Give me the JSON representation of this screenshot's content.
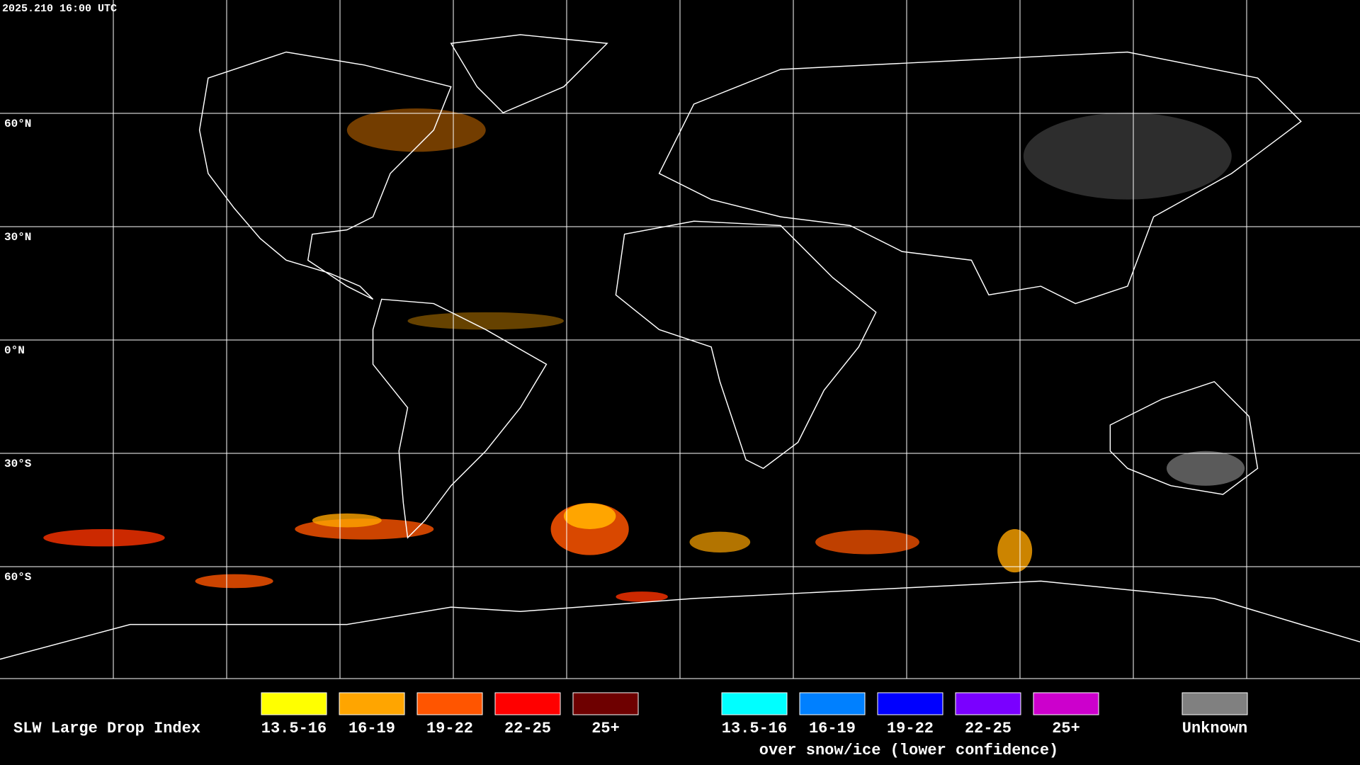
{
  "timestamp": "2025.210 16:00 UTC",
  "lat_lines": [
    {
      "value": 60,
      "label": "60°N"
    },
    {
      "value": 30,
      "label": "30°N"
    },
    {
      "value": 0,
      "label": "0°N"
    },
    {
      "value": -30,
      "label": "30°S"
    },
    {
      "value": -60,
      "label": "60°S"
    }
  ],
  "legend": {
    "title": "SLW Large Drop Index",
    "groups": [
      {
        "items": [
          {
            "label": "13.5-16",
            "color": "#ffff00"
          },
          {
            "label": "16-19",
            "color": "#ffa500"
          },
          {
            "label": "19-22",
            "color": "#ff5500"
          },
          {
            "label": "22-25",
            "color": "#ff0000"
          },
          {
            "label": "25+",
            "color": "#6e0000"
          }
        ]
      },
      {
        "items": [
          {
            "label": "13.5-16",
            "color": "#00ffff"
          },
          {
            "label": "16-19",
            "color": "#0080ff"
          },
          {
            "label": "19-22",
            "color": "#0000ff"
          },
          {
            "label": "22-25",
            "color": "#7a00ff"
          },
          {
            "label": "25+",
            "color": "#cc00cc"
          }
        ],
        "caption": "over snow/ice (lower confidence)"
      },
      {
        "items": [
          {
            "label": "Unknown",
            "color": "#808080"
          }
        ]
      }
    ]
  }
}
